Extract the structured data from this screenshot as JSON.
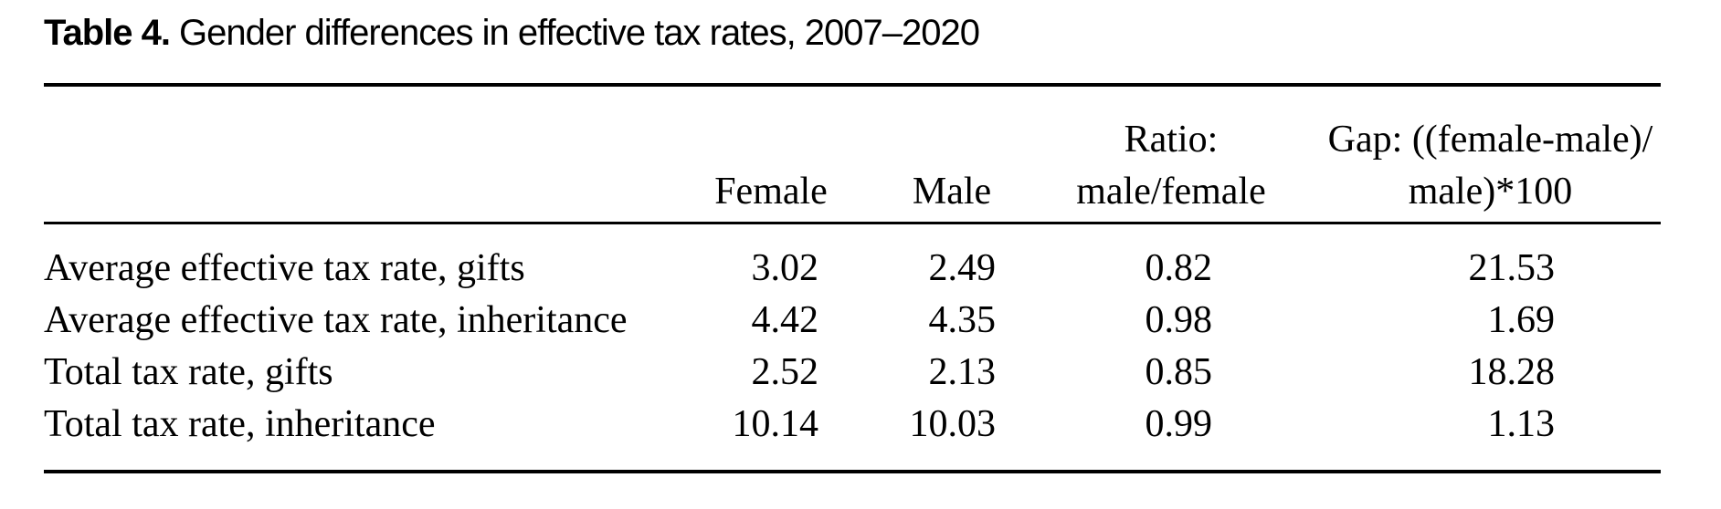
{
  "caption": {
    "label": "Table 4.",
    "text": "Gender differences in effective tax rates, 2007–2020"
  },
  "table": {
    "columns": {
      "female": {
        "header": "Female"
      },
      "male": {
        "header": "Male"
      },
      "ratio": {
        "header_line1": "Ratio:",
        "header_line2": "male/female"
      },
      "gap": {
        "header_line1": "Gap: ((female-male)/",
        "header_line2": "male)*100"
      }
    },
    "rows": [
      {
        "label": "Average effective tax rate, gifts",
        "female": "3.02",
        "male": "2.49",
        "ratio": "0.82",
        "gap": "21.53"
      },
      {
        "label": "Average effective tax rate, inheritance",
        "female": "4.42",
        "male": "4.35",
        "ratio": "0.98",
        "gap": "1.69"
      },
      {
        "label": "Total tax rate, gifts",
        "female": "2.52",
        "male": "2.13",
        "ratio": "0.85",
        "gap": "18.28"
      },
      {
        "label": "Total tax rate, inheritance",
        "female": "10.14",
        "male": "10.03",
        "ratio": "0.99",
        "gap": "1.13"
      }
    ]
  },
  "colors": {
    "background": "#ffffff",
    "text": "#000000",
    "rule": "#000000"
  }
}
